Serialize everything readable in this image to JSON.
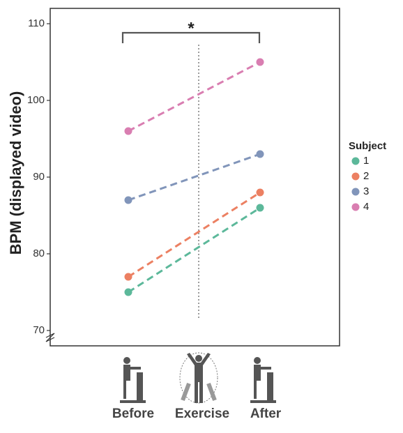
{
  "chart_data": {
    "type": "line",
    "y_label": "BPM (displayed video)",
    "categories": [
      "Before",
      "After"
    ],
    "middle_label": "Exercise",
    "annotation": "*",
    "legend_title": "Subject",
    "series": [
      {
        "name": "1",
        "color": "#5cb89a",
        "values": [
          75,
          86
        ]
      },
      {
        "name": "2",
        "color": "#ec8062",
        "values": [
          77,
          88
        ]
      },
      {
        "name": "3",
        "color": "#8195ba",
        "values": [
          87,
          93
        ]
      },
      {
        "name": "4",
        "color": "#d97eb1",
        "values": [
          96,
          105
        ]
      }
    ],
    "ylim": [
      68,
      112
    ],
    "yticks": [
      70,
      80,
      90,
      100,
      110
    ],
    "grid": false
  }
}
